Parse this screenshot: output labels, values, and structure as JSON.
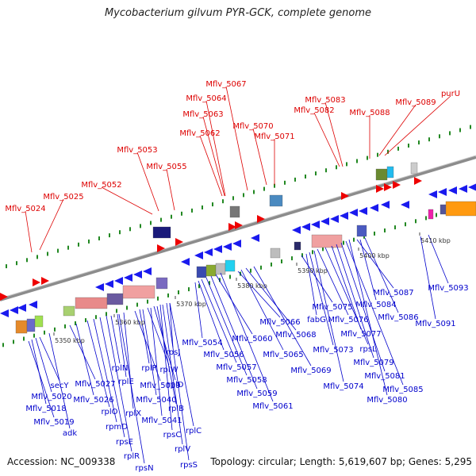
{
  "title": "Mycobacterium gilvum PYR-GCK, complete genome",
  "accession_text": "Accession: NC_009338",
  "topology_text": "Topology: circular; Length: 5,619,607 bp; Genes: 5,295",
  "colors": {
    "top_label": "#dd0000",
    "bottom_label": "#0000cc",
    "forward_arrow": "#ee0000",
    "reverse_arrow": "#1a1aee",
    "backbone": "#888888",
    "tick": "#228822"
  },
  "scale_labels": [
    "5350 kbp",
    "5360 kbp",
    "5370 kbp",
    "5380 kbp",
    "5390 kbp",
    "5400 kbp",
    "5410 kbp"
  ],
  "top_genes": [
    "Mflv_5024",
    "Mflv_5025",
    "Mflv_5052",
    "Mflv_5053",
    "Mflv_5055",
    "Mflv_5062",
    "Mflv_5063",
    "Mflv_5064",
    "Mflv_5067",
    "Mflv_5070",
    "Mflv_5071",
    "Mflv_5082",
    "Mflv_5083",
    "Mflv_5088",
    "Mflv_5089",
    "purU"
  ],
  "bottom_genes": [
    "secY",
    "Mflv_5020",
    "Mflv_5018",
    "Mflv_5019",
    "adk",
    "Mflv_5027",
    "Mflv_5026",
    "rplO",
    "rpmD",
    "rpsE",
    "rplR",
    "rpsN",
    "rplN",
    "rplE",
    "rplX",
    "Mflv_5039",
    "rplP",
    "Mflv_5040",
    "rplW",
    "Mflv_5041",
    "rplD",
    "rplB",
    "rpsC",
    "rplV",
    "rpsS",
    "rplC",
    "rpsJ",
    "Mflv_5054",
    "Mflv_5056",
    "Mflv_5057",
    "Mflv_5058",
    "Mflv_5059",
    "Mflv_5060",
    "Mflv_5061",
    "Mflv_5066",
    "Mflv_5065",
    "Mflv_5068",
    "Mflv_5069",
    "Mflv_5075",
    "fabG",
    "Mflv_5073",
    "Mflv_5074",
    "Mflv_5076",
    "rpsL",
    "Mflv_5077",
    "Mflv_5079",
    "Mflv_5081",
    "Mflv_5085",
    "Mflv_5080",
    "Mflv_5087",
    "Mflv_5084",
    "Mflv_5086",
    "Mflv_5093",
    "Mflv_5091"
  ]
}
